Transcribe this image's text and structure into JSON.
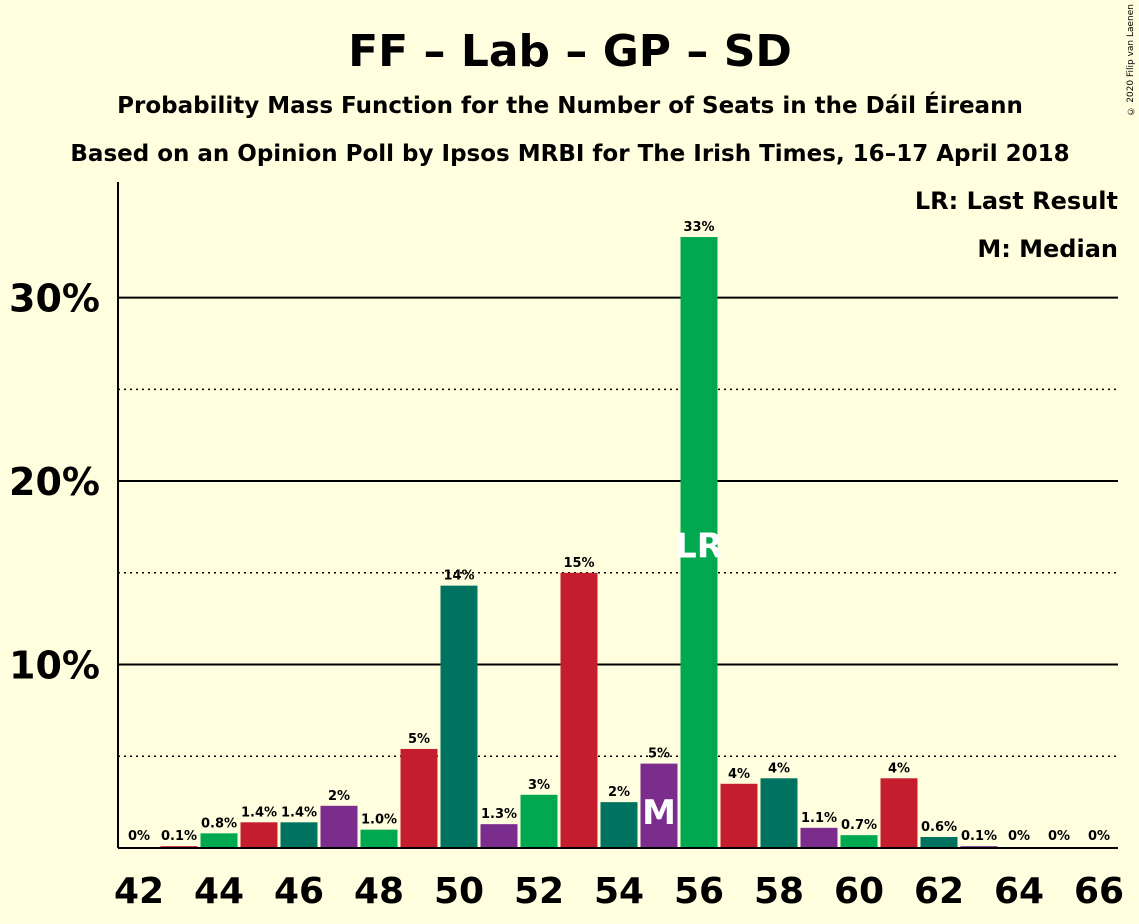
{
  "title": "FF – Lab – GP – SD",
  "subtitle1": "Probability Mass Function for the Number of Seats in the Dáil Éireann",
  "subtitle2": "Based on an Opinion Poll by Ipsos MRBI for The Irish Times, 16–17 April 2018",
  "legend": {
    "lr": "LR: Last Result",
    "m": "M: Median"
  },
  "copyright": "© 2020 Filip van Laenen",
  "colors": {
    "background": "#FFFFE0",
    "ff_green": "#00A84F",
    "lab_red": "#C41E2E",
    "gp_dark_green": "#007360",
    "sd_purple": "#7B2D8E"
  },
  "chart_data": {
    "type": "bar",
    "x": [
      42,
      43,
      44,
      45,
      46,
      47,
      48,
      49,
      50,
      51,
      52,
      53,
      54,
      55,
      56,
      57,
      58,
      59,
      60,
      61,
      62,
      63,
      64,
      65,
      66
    ],
    "values": [
      0,
      0.1,
      0.8,
      1.4,
      1.4,
      2.3,
      1.0,
      5.4,
      14.3,
      1.3,
      2.9,
      15.0,
      2.5,
      4.6,
      33.3,
      3.5,
      3.8,
      1.1,
      0.7,
      3.8,
      0.6,
      0.1,
      0,
      0,
      0
    ],
    "labels": [
      "0%",
      "0.1%",
      "0.8%",
      "1.4%",
      "1.4%",
      "2%",
      "1.0%",
      "5%",
      "14%",
      "1.3%",
      "3%",
      "15%",
      "2%",
      "5%",
      "33%",
      "4%",
      "4%",
      "1.1%",
      "0.7%",
      "4%",
      "0.6%",
      "0.1%",
      "0%",
      "0%",
      "0%"
    ],
    "bar_colors": [
      "#00A84F",
      "#C41E2E",
      "#00A84F",
      "#C41E2E",
      "#007360",
      "#7B2D8E",
      "#00A84F",
      "#C41E2E",
      "#007360",
      "#7B2D8E",
      "#00A84F",
      "#C41E2E",
      "#007360",
      "#7B2D8E",
      "#00A84F",
      "#C41E2E",
      "#007360",
      "#7B2D8E",
      "#00A84F",
      "#C41E2E",
      "#007360",
      "#7B2D8E",
      "#00A84F",
      "#C41E2E",
      "#007360"
    ],
    "x_tick_labels": [
      "42",
      "44",
      "46",
      "48",
      "50",
      "52",
      "54",
      "56",
      "58",
      "60",
      "62",
      "64",
      "66"
    ],
    "y_tick_labels": [
      "10%",
      "20%",
      "30%"
    ],
    "y_ticks": [
      10,
      20,
      30
    ],
    "y_minor_ticks": [
      5,
      15,
      25
    ],
    "ylim": [
      0,
      36.3
    ],
    "median": {
      "x": 55,
      "label": "M"
    },
    "last_result": {
      "x": 56,
      "label": "LR"
    }
  }
}
